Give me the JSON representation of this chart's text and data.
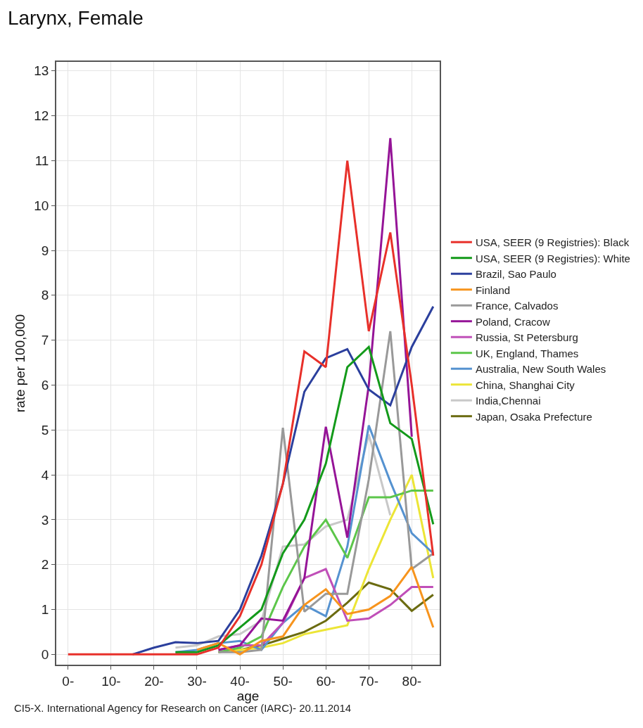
{
  "chart_data": {
    "type": "line",
    "title": "Larynx, Female",
    "xlabel": "age",
    "ylabel": "rate per 100,000",
    "annotations": [
      "CI5-X. International Agency for Research on Cancer (IARC)- 20.11.2014"
    ],
    "x": [
      0,
      5,
      10,
      15,
      20,
      25,
      30,
      35,
      40,
      45,
      50,
      55,
      60,
      65,
      70,
      75,
      80,
      85
    ],
    "xlim": [
      -2.75,
      86.5
    ],
    "xticks": [
      {
        "value": 0,
        "label": "0-"
      },
      {
        "value": 10,
        "label": "10-"
      },
      {
        "value": 20,
        "label": "20-"
      },
      {
        "value": 30,
        "label": "30-"
      },
      {
        "value": 40,
        "label": "40-"
      },
      {
        "value": 50,
        "label": "50-"
      },
      {
        "value": 60,
        "label": "60-"
      },
      {
        "value": 70,
        "label": "70-"
      },
      {
        "value": 80,
        "label": "80-"
      }
    ],
    "ylim": [
      -0.23,
      13.2
    ],
    "yticks": [
      0,
      1,
      2,
      3,
      4,
      5,
      6,
      7,
      8,
      9,
      10,
      11,
      12,
      13
    ],
    "grid": true,
    "legend": "right",
    "marker": "none",
    "line_style": "solid",
    "series": [
      {
        "name": "Japan, Osaka Prefecture",
        "color": "#6b6b10",
        "values": [
          null,
          null,
          null,
          null,
          null,
          null,
          null,
          0.05,
          0.1,
          0.2,
          0.35,
          0.5,
          0.75,
          1.15,
          1.6,
          1.45,
          0.97,
          1.33
        ]
      },
      {
        "name": "India,Chennai",
        "color": "#c8c8c8",
        "values": [
          null,
          null,
          null,
          null,
          null,
          0.15,
          0.2,
          0.4,
          0.45,
          0.75,
          2.4,
          2.45,
          2.85,
          3.0,
          4.9,
          3.1,
          null,
          null
        ]
      },
      {
        "name": "China, Shanghai City",
        "color": "#ece536",
        "values": [
          null,
          null,
          null,
          null,
          null,
          null,
          null,
          0.05,
          0.1,
          0.15,
          0.25,
          0.45,
          0.55,
          0.65,
          1.9,
          3.0,
          4.0,
          1.7
        ]
      },
      {
        "name": "Australia, New South Wales",
        "color": "#5592d0",
        "values": [
          null,
          null,
          null,
          null,
          null,
          0.05,
          0.1,
          0.25,
          0.3,
          0.1,
          0.7,
          1.1,
          0.85,
          2.4,
          5.1,
          3.85,
          2.7,
          2.25
        ]
      },
      {
        "name": "UK, England, Thames",
        "color": "#5cc64a",
        "values": [
          null,
          null,
          null,
          null,
          null,
          null,
          null,
          0.05,
          0.15,
          0.4,
          1.5,
          2.4,
          3.0,
          2.15,
          3.5,
          3.5,
          3.65,
          3.65
        ]
      },
      {
        "name": "Russia, St Petersburg",
        "color": "#c04fb8",
        "values": [
          null,
          null,
          null,
          null,
          null,
          null,
          null,
          0.1,
          0.2,
          0.2,
          0.7,
          1.7,
          1.9,
          0.75,
          0.8,
          1.1,
          1.5,
          1.5
        ]
      },
      {
        "name": "Poland, Cracow",
        "color": "#951497",
        "values": [
          null,
          null,
          null,
          null,
          null,
          null,
          null,
          0.1,
          0.2,
          0.8,
          0.75,
          1.7,
          5.07,
          2.6,
          6.0,
          11.5,
          4.85,
          null
        ]
      },
      {
        "name": "France, Calvados",
        "color": "#999999",
        "values": [
          null,
          null,
          null,
          null,
          null,
          null,
          null,
          0.05,
          0.05,
          0.1,
          5.05,
          0.95,
          1.35,
          1.35,
          3.9,
          7.2,
          1.9,
          2.25
        ]
      },
      {
        "name": "Finland",
        "color": "#f7941d",
        "values": [
          null,
          null,
          null,
          null,
          null,
          null,
          0.1,
          0.25,
          0,
          0.3,
          0.4,
          1.1,
          1.45,
          0.9,
          1.0,
          1.3,
          1.95,
          0.6
        ]
      },
      {
        "name": "Brazil, Sao Paulo",
        "color": "#2b3f9d",
        "values": [
          null,
          null,
          null,
          0,
          0.15,
          0.27,
          0.25,
          0.3,
          1.0,
          2.2,
          3.8,
          5.85,
          6.6,
          6.8,
          5.9,
          5.55,
          6.85,
          7.75
        ]
      },
      {
        "name": "USA, SEER (9 Registries): White",
        "color": "#139a1a",
        "values": [
          null,
          null,
          null,
          null,
          null,
          0.05,
          0.05,
          0.2,
          0.6,
          1.0,
          2.25,
          3.0,
          4.25,
          6.4,
          6.85,
          5.15,
          4.8,
          2.9
        ]
      },
      {
        "name": "USA, SEER (9 Registries): Black",
        "color": "#e8302a",
        "values": [
          0,
          0,
          0,
          0,
          0,
          0,
          0,
          0.15,
          0.85,
          2.0,
          3.8,
          6.75,
          6.4,
          11.0,
          7.2,
          9.4,
          6.0,
          2.2
        ]
      }
    ]
  }
}
